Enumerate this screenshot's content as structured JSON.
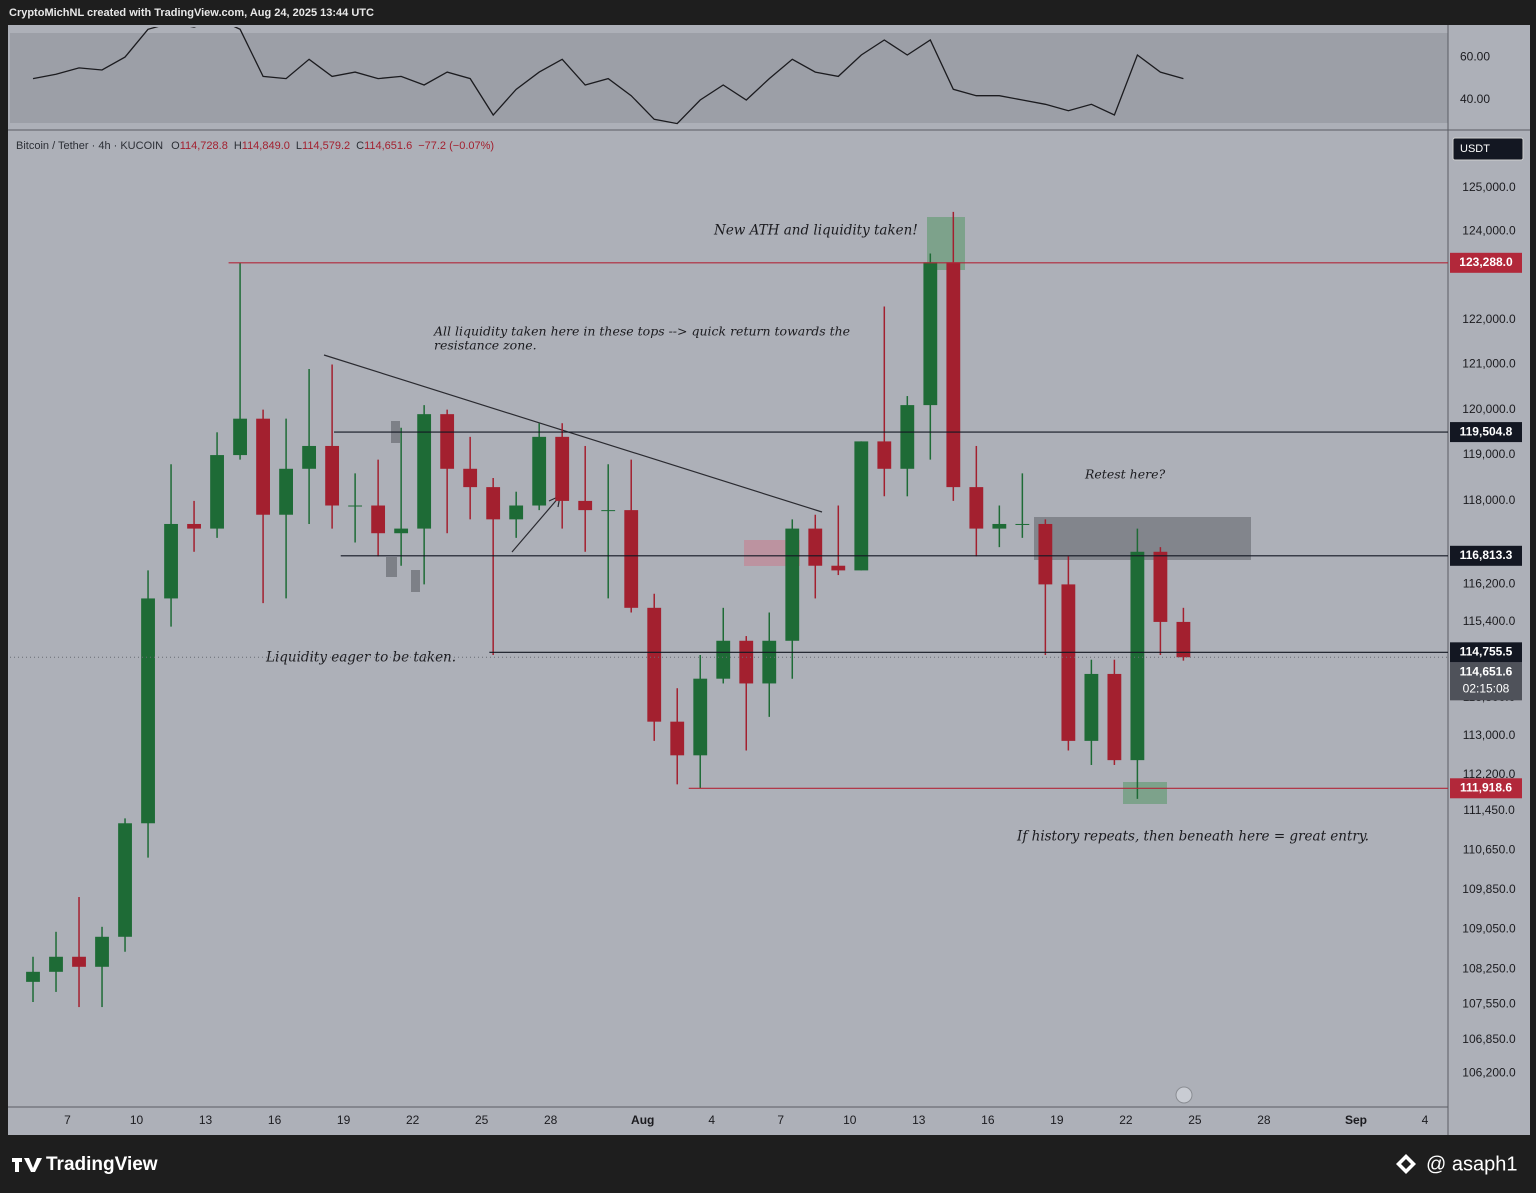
{
  "header": {
    "caption": "CryptoMichNL created with TradingView.com, Aug 24, 2025 13:44 UTC"
  },
  "footer": {
    "brand": "TradingView",
    "author": "@ asaph1"
  },
  "chart_data": [
    {
      "type": "candlestick",
      "symbol": "Bitcoin / Tether · 4h · KUCOIN",
      "ohlc_labels": [
        {
          "key": "O",
          "label": "114,728.8"
        },
        {
          "key": "H",
          "label": "114,849.0"
        },
        {
          "key": "L",
          "label": "114,579.2"
        },
        {
          "key": "C",
          "label": "114,651.6"
        }
      ],
      "change_label": "−77.2 (−0.07%)",
      "currency": "USDT",
      "up_color": "#1e6b36",
      "down_color": "#a3202f",
      "log_scale": true,
      "x": [
        "2025-07-05",
        "2025-07-06",
        "2025-07-07",
        "2025-07-08",
        "2025-07-09",
        "2025-07-10",
        "2025-07-11",
        "2025-07-12",
        "2025-07-13",
        "2025-07-14",
        "2025-07-15",
        "2025-07-16",
        "2025-07-17",
        "2025-07-18",
        "2025-07-19",
        "2025-07-20",
        "2025-07-21",
        "2025-07-22",
        "2025-07-23",
        "2025-07-24",
        "2025-07-25",
        "2025-07-26",
        "2025-07-27",
        "2025-07-28",
        "2025-07-29",
        "2025-07-30",
        "2025-07-31",
        "2025-08-01",
        "2025-08-02",
        "2025-08-03",
        "2025-08-04",
        "2025-08-05",
        "2025-08-06",
        "2025-08-07",
        "2025-08-08",
        "2025-08-09",
        "2025-08-10",
        "2025-08-11",
        "2025-08-12",
        "2025-08-13",
        "2025-08-14",
        "2025-08-15",
        "2025-08-16",
        "2025-08-17",
        "2025-08-18",
        "2025-08-19",
        "2025-08-20",
        "2025-08-21",
        "2025-08-22",
        "2025-08-23",
        "2025-08-24"
      ],
      "open": [
        108000,
        108200,
        108500,
        108300,
        108900,
        111200,
        115900,
        117500,
        117400,
        119000,
        119800,
        117700,
        118700,
        119200,
        117900,
        117900,
        117300,
        117400,
        119900,
        118700,
        118300,
        117600,
        117900,
        119400,
        118000,
        117800,
        117800,
        115700,
        113300,
        112600,
        114200,
        115000,
        114100,
        115000,
        117400,
        116600,
        116500,
        119300,
        118700,
        120100,
        123300,
        118300,
        117400,
        117500,
        117500,
        116200,
        112900,
        114300,
        112500,
        116900,
        115400
      ],
      "high": [
        108500,
        109000,
        109700,
        109100,
        111300,
        116500,
        118800,
        118000,
        119500,
        123288,
        120000,
        119800,
        120900,
        121000,
        118600,
        118900,
        119600,
        120100,
        120000,
        119400,
        118500,
        118200,
        119700,
        119700,
        119200,
        118800,
        118900,
        116000,
        114000,
        114700,
        115700,
        115100,
        115600,
        117600,
        117700,
        117900,
        119300,
        122300,
        120300,
        123500,
        124450,
        119200,
        117900,
        118600,
        117600,
        116800,
        114600,
        114600,
        117400,
        117000,
        115700
      ],
      "low": [
        107600,
        107800,
        107500,
        107500,
        108600,
        110500,
        115300,
        116900,
        117200,
        118900,
        115800,
        115900,
        117500,
        117400,
        117100,
        116800,
        116600,
        116200,
        117300,
        117600,
        114700,
        117200,
        117800,
        117400,
        116900,
        115900,
        115600,
        112900,
        112000,
        111920,
        114100,
        112700,
        113400,
        114200,
        115900,
        116400,
        116500,
        118100,
        118100,
        118900,
        118000,
        116800,
        117000,
        117200,
        114700,
        112700,
        112400,
        112400,
        111700,
        114700,
        114580
      ],
      "close": [
        108200,
        108500,
        108300,
        108900,
        111200,
        115900,
        117500,
        117400,
        119000,
        119800,
        117700,
        118700,
        119200,
        117900,
        117900,
        117300,
        117400,
        119900,
        118700,
        118300,
        117600,
        117900,
        119400,
        118000,
        117800,
        117800,
        115700,
        113300,
        112600,
        114200,
        115000,
        114100,
        115000,
        117400,
        116600,
        116500,
        119300,
        118700,
        120100,
        123300,
        118300,
        117400,
        117500,
        117500,
        116200,
        112900,
        114300,
        112500,
        116900,
        115400,
        114651.6
      ],
      "xlim": [
        "2025-07-04T12:00",
        "2025-09-05T00:00"
      ],
      "xticks": [
        {
          "value": "2025-07-07",
          "label": "7"
        },
        {
          "value": "2025-07-10",
          "label": "10"
        },
        {
          "value": "2025-07-13",
          "label": "13"
        },
        {
          "value": "2025-07-16",
          "label": "16"
        },
        {
          "value": "2025-07-19",
          "label": "19"
        },
        {
          "value": "2025-07-22",
          "label": "22"
        },
        {
          "value": "2025-07-25",
          "label": "25"
        },
        {
          "value": "2025-07-28",
          "label": "28"
        },
        {
          "value": "2025-08-01",
          "label": "Aug"
        },
        {
          "value": "2025-08-04",
          "label": "4"
        },
        {
          "value": "2025-08-07",
          "label": "7"
        },
        {
          "value": "2025-08-10",
          "label": "10"
        },
        {
          "value": "2025-08-13",
          "label": "13"
        },
        {
          "value": "2025-08-16",
          "label": "16"
        },
        {
          "value": "2025-08-19",
          "label": "19"
        },
        {
          "value": "2025-08-22",
          "label": "22"
        },
        {
          "value": "2025-08-25",
          "label": "25"
        },
        {
          "value": "2025-08-28",
          "label": "28"
        },
        {
          "value": "2025-09-01",
          "label": "Sep"
        },
        {
          "value": "2025-09-04",
          "label": "4"
        }
      ],
      "ylim": [
        105540,
        126340
      ],
      "yticks": [
        {
          "value": 125000,
          "label": "125,000.0"
        },
        {
          "value": 124000,
          "label": "124,000.0"
        },
        {
          "value": 122000,
          "label": "122,000.0"
        },
        {
          "value": 121000,
          "label": "121,000.0"
        },
        {
          "value": 120000,
          "label": "120,000.0"
        },
        {
          "value": 119000,
          "label": "119,000.0"
        },
        {
          "value": 118000,
          "label": "118,000.0"
        },
        {
          "value": 116200,
          "label": "116,200.0"
        },
        {
          "value": 115400,
          "label": "115,400.0"
        },
        {
          "value": 113800,
          "label": "113,800.0"
        },
        {
          "value": 113000,
          "label": "113,000.0"
        },
        {
          "value": 112200,
          "label": "112,200.0"
        },
        {
          "value": 111450,
          "label": "111,450.0"
        },
        {
          "value": 110650,
          "label": "110,650.0"
        },
        {
          "value": 109850,
          "label": "109,850.0"
        },
        {
          "value": 109050,
          "label": "109,050.0"
        },
        {
          "value": 108250,
          "label": "108,250.0"
        },
        {
          "value": 107550,
          "label": "107,550.0"
        },
        {
          "value": 106850,
          "label": "106,850.0"
        },
        {
          "value": 106200,
          "label": "106,200.0"
        }
      ],
      "levels": [
        {
          "value": 123288.0,
          "label": "123,288.0",
          "color": "#b2283a",
          "from": "2025-07-14"
        },
        {
          "value": 119504.8,
          "label": "119,504.8",
          "color": "#131722",
          "from": "2025-07-18T14:00"
        },
        {
          "value": 116813.3,
          "label": "116,813.3",
          "color": "#131722",
          "from": "2025-07-18T21:00"
        },
        {
          "value": 114755.5,
          "label": "114,755.5",
          "color": "#131722",
          "from": "2025-07-25T08:00"
        },
        {
          "value": 111918.6,
          "label": "111,918.6",
          "color": "#b2283a",
          "from": "2025-08-03"
        }
      ],
      "last_price": {
        "value": 114651.6,
        "label": "114,651.6",
        "countdown": "02:15:08"
      },
      "annotations": [
        "New ATH and liquidity taken!",
        "All liquidity taken here in these tops --> quick return towards the",
        "resistance zone.",
        "Retest here?",
        "Liquidity eager to be taken.",
        "If history repeats, then beneath here = great entry."
      ]
    },
    {
      "type": "line",
      "color": "#1b1b1f",
      "x": [
        "2025-07-05",
        "2025-07-06",
        "2025-07-07",
        "2025-07-08",
        "2025-07-09",
        "2025-07-10",
        "2025-07-11",
        "2025-07-12",
        "2025-07-13",
        "2025-07-14",
        "2025-07-15",
        "2025-07-16",
        "2025-07-17",
        "2025-07-18",
        "2025-07-19",
        "2025-07-20",
        "2025-07-21",
        "2025-07-22",
        "2025-07-23",
        "2025-07-24",
        "2025-07-25",
        "2025-07-26",
        "2025-07-27",
        "2025-07-28",
        "2025-07-29",
        "2025-07-30",
        "2025-07-31",
        "2025-08-01",
        "2025-08-02",
        "2025-08-03",
        "2025-08-04",
        "2025-08-05",
        "2025-08-06",
        "2025-08-07",
        "2025-08-08",
        "2025-08-09",
        "2025-08-10",
        "2025-08-11",
        "2025-08-12",
        "2025-08-13",
        "2025-08-14",
        "2025-08-15",
        "2025-08-16",
        "2025-08-17",
        "2025-08-18",
        "2025-08-19",
        "2025-08-20",
        "2025-08-21",
        "2025-08-22",
        "2025-08-23",
        "2025-08-24"
      ],
      "values": [
        50,
        52,
        55,
        54,
        60,
        73,
        76,
        74,
        78,
        73,
        51,
        50,
        59,
        51,
        53,
        50,
        51,
        47,
        53,
        50,
        33,
        45,
        53,
        59,
        47,
        50,
        42,
        31,
        29,
        40,
        47,
        40,
        50,
        59,
        53,
        51,
        61,
        68,
        61,
        68,
        45,
        42,
        42,
        40,
        38,
        35,
        38,
        33,
        61,
        53,
        50
      ],
      "ylim": [
        26,
        75
      ],
      "yticks": [
        {
          "value": 60,
          "label": "60.00"
        },
        {
          "value": 40,
          "label": "40.00"
        }
      ]
    }
  ]
}
